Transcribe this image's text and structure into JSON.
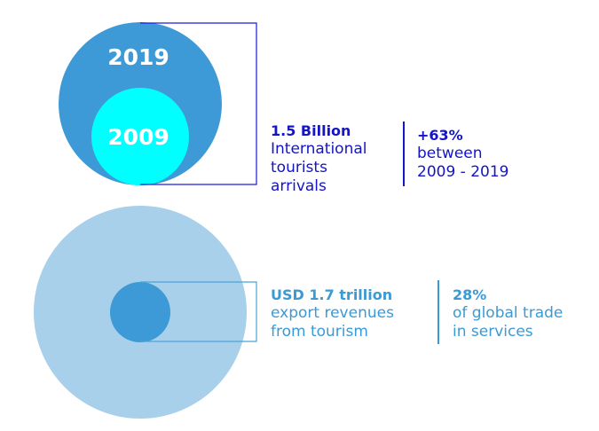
{
  "colors": {
    "circle_2019": "#3d9ad6",
    "circle_2009": "#00ffff",
    "circle_outer_light": "#a8d0ea",
    "circle_inner_mid": "#3d9ad6",
    "bracket_top": "#1a1adb",
    "bracket_bottom": "#4aa3d8",
    "text_dark_blue": "#1414c8",
    "text_mid_blue": "#3a9ad6"
  },
  "top_section": {
    "label_2019": "2019",
    "label_2009": "2009",
    "arrivals": {
      "headline": "1.5 Billion",
      "lines": [
        "International",
        "tourists",
        "arrivals"
      ]
    },
    "growth": {
      "headline": "+63%",
      "lines": [
        "between",
        "2009 - 2019"
      ]
    }
  },
  "bottom_section": {
    "revenues": {
      "headline": "USD 1.7 trillion",
      "lines": [
        "export revenues",
        "from tourism"
      ]
    },
    "share": {
      "headline": "28%",
      "lines": [
        "of global trade",
        "in services"
      ]
    }
  }
}
